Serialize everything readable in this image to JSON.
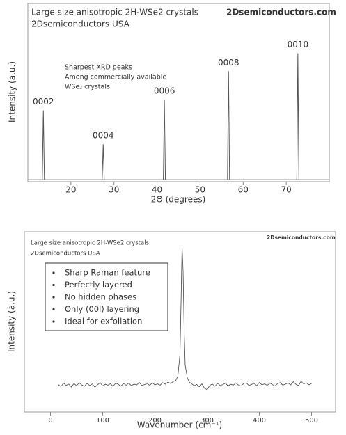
{
  "chart_data": [
    {
      "type": "peaks",
      "title": "Large size anisotropic 2H-WSe2 crystals",
      "subtitle": "2Dsemiconductors USA",
      "website": "2Dsemiconductors.com",
      "annotation": [
        "Sharpest XRD peaks",
        "Among commercially available",
        "WSe₂ crystals"
      ],
      "xlabel": "2Θ (degrees)",
      "ylabel": "Intensity (a.u.)",
      "peak_labels": [
        "0002",
        "0004",
        "0006",
        "0008",
        "0010"
      ],
      "x": [
        13.6,
        27.5,
        41.7,
        56.6,
        72.7
      ],
      "values": [
        40,
        21,
        46,
        62,
        72
      ],
      "xlim": [
        10,
        80
      ],
      "ylim": [
        0,
        100
      ],
      "xticks": [
        20,
        30,
        40,
        50,
        60,
        70
      ],
      "color": "#555555"
    },
    {
      "type": "line",
      "title": "Large size anisotropic 2H-WSe2 crystals",
      "subtitle": "2Dsemiconductors USA",
      "website": "2Dsemiconductors.com",
      "notes": [
        "Sharp Raman feature",
        "Perfectly  layered",
        "No hidden phases",
        "Only (00l) layering",
        "Ideal for exfoliation"
      ],
      "xlabel": "Wavenumber (cm⁻¹)",
      "ylabel": "Intensity (a.u.)",
      "x": [
        15,
        20,
        25,
        30,
        35,
        40,
        45,
        50,
        55,
        60,
        65,
        70,
        75,
        80,
        85,
        90,
        95,
        100,
        105,
        110,
        115,
        120,
        125,
        130,
        135,
        140,
        145,
        150,
        155,
        160,
        165,
        170,
        175,
        180,
        185,
        190,
        195,
        200,
        205,
        210,
        215,
        220,
        225,
        230,
        235,
        240,
        244,
        248,
        250,
        252,
        254,
        256,
        258,
        262,
        266,
        270,
        275,
        280,
        285,
        290,
        295,
        300,
        305,
        310,
        315,
        320,
        325,
        330,
        335,
        340,
        345,
        350,
        355,
        360,
        365,
        370,
        375,
        380,
        385,
        390,
        395,
        400,
        405,
        410,
        415,
        420,
        425,
        430,
        435,
        440,
        445,
        450,
        455,
        460,
        465,
        470,
        475,
        480,
        485,
        490,
        495,
        500
      ],
      "values": [
        15.2,
        14.1,
        16.0,
        14.8,
        15.5,
        13.9,
        15.8,
        14.6,
        16.2,
        15.0,
        14.3,
        15.9,
        14.7,
        15.6,
        13.8,
        15.1,
        16.3,
        14.5,
        15.4,
        14.9,
        15.7,
        14.2,
        16.1,
        15.3,
        14.4,
        15.8,
        14.9,
        16.0,
        14.6,
        15.5,
        15.0,
        16.4,
        14.7,
        15.2,
        15.9,
        14.8,
        16.2,
        15.1,
        15.6,
        14.9,
        16.3,
        15.4,
        16.6,
        15.8,
        16.9,
        17.5,
        20,
        32,
        60,
        92,
        78,
        45,
        26,
        19,
        16.5,
        15.8,
        14.6,
        15.3,
        14.0,
        15.6,
        13.2,
        12.4,
        14.8,
        15.5,
        14.3,
        15.9,
        14.7,
        15.2,
        16.0,
        14.5,
        15.4,
        14.9,
        16.1,
        15.0,
        14.4,
        15.8,
        16.2,
        14.7,
        15.3,
        15.9,
        14.6,
        16.4,
        15.1,
        15.6,
        14.8,
        16.0,
        15.2,
        14.5,
        15.7,
        16.3,
        14.9,
        15.5,
        16.1,
        15.0,
        16.8,
        15.4,
        14.7,
        17.0,
        15.6,
        16.2,
        15.1,
        15.8
      ],
      "xlim": [
        -50,
        546
      ],
      "ylim": [
        0,
        100
      ],
      "xticks": [
        0,
        100,
        200,
        300,
        400,
        500
      ],
      "color": "#444444"
    }
  ]
}
